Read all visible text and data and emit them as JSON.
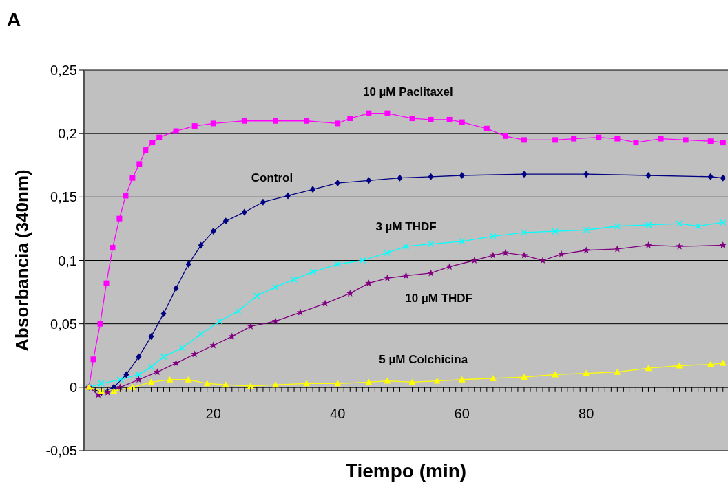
{
  "chart_data": {
    "type": "line",
    "xlabel": "Tiempo (min)",
    "ylabel": "Absorbancia (340nm)",
    "xlim": [
      -0.8,
      102.8
    ],
    "ylim": [
      -0.05,
      0.25
    ],
    "yticks": [
      {
        "value": -0.05,
        "label": "-0,05"
      },
      0,
      {
        "value": 0.05,
        "label": "0,05"
      },
      {
        "value": 0.1,
        "label": "0,1"
      },
      {
        "value": 0.15,
        "label": "0,15"
      },
      {
        "value": 0.2,
        "label": "0,2"
      },
      {
        "value": 0.25,
        "label": "0,25"
      }
    ],
    "xticks": [
      {
        "value": 1,
        "label": null
      },
      {
        "value": 2,
        "label": null
      },
      {
        "value": 3,
        "label": null
      },
      {
        "value": 4,
        "label": null
      },
      {
        "value": 5,
        "label": null
      },
      {
        "value": 6,
        "label": null
      },
      {
        "value": 7,
        "label": null
      },
      {
        "value": 8,
        "label": null
      },
      {
        "value": 9,
        "label": null
      },
      {
        "value": 10,
        "label": null
      },
      {
        "value": 11,
        "label": null
      },
      {
        "value": 12,
        "label": null
      },
      {
        "value": 13,
        "label": null
      },
      {
        "value": 14,
        "label": null
      },
      {
        "value": 15,
        "label": null
      },
      {
        "value": 16,
        "label": null
      },
      {
        "value": 17,
        "label": null
      },
      {
        "value": 18,
        "label": null
      },
      {
        "value": 19,
        "label": null
      },
      20,
      {
        "value": 21,
        "label": null
      },
      {
        "value": 22,
        "label": null
      },
      {
        "value": 23,
        "label": null
      },
      {
        "value": 24,
        "label": null
      },
      {
        "value": 25,
        "label": null
      },
      {
        "value": 26,
        "label": null
      },
      {
        "value": 27,
        "label": null
      },
      {
        "value": 28,
        "label": null
      },
      {
        "value": 29,
        "label": null
      },
      {
        "value": 30,
        "label": null
      },
      {
        "value": 31,
        "label": null
      },
      {
        "value": 32,
        "label": null
      },
      {
        "value": 33,
        "label": null
      },
      {
        "value": 34,
        "label": null
      },
      {
        "value": 35,
        "label": null
      },
      {
        "value": 36,
        "label": null
      },
      {
        "value": 37,
        "label": null
      },
      {
        "value": 38,
        "label": null
      },
      {
        "value": 39,
        "label": null
      },
      40,
      {
        "value": 41,
        "label": null
      },
      {
        "value": 42,
        "label": null
      },
      {
        "value": 43,
        "label": null
      },
      {
        "value": 44,
        "label": null
      },
      {
        "value": 45,
        "label": null
      },
      {
        "value": 46,
        "label": null
      },
      {
        "value": 47,
        "label": null
      },
      {
        "value": 48,
        "label": null
      },
      {
        "value": 49,
        "label": null
      },
      {
        "value": 50,
        "label": null
      },
      {
        "value": 51,
        "label": null
      },
      {
        "value": 52,
        "label": null
      },
      {
        "value": 53,
        "label": null
      },
      {
        "value": 54,
        "label": null
      },
      {
        "value": 55,
        "label": null
      },
      {
        "value": 56,
        "label": null
      },
      {
        "value": 57,
        "label": null
      },
      {
        "value": 58,
        "label": null
      },
      {
        "value": 59,
        "label": null
      },
      60,
      {
        "value": 61,
        "label": null
      },
      {
        "value": 62,
        "label": null
      },
      {
        "value": 63,
        "label": null
      },
      {
        "value": 64,
        "label": null
      },
      {
        "value": 65,
        "label": null
      },
      {
        "value": 66,
        "label": null
      },
      {
        "value": 67,
        "label": null
      },
      {
        "value": 68,
        "label": null
      },
      {
        "value": 69,
        "label": null
      },
      {
        "value": 70,
        "label": null
      },
      {
        "value": 71,
        "label": null
      },
      {
        "value": 72,
        "label": null
      },
      {
        "value": 73,
        "label": null
      },
      {
        "value": 74,
        "label": null
      },
      {
        "value": 75,
        "label": null
      },
      {
        "value": 76,
        "label": null
      },
      {
        "value": 77,
        "label": null
      },
      {
        "value": 78,
        "label": null
      },
      {
        "value": 79,
        "label": null
      },
      80,
      {
        "value": 81,
        "label": null
      },
      {
        "value": 82,
        "label": null
      },
      {
        "value": 83,
        "label": null
      },
      {
        "value": 84,
        "label": null
      },
      {
        "value": 85,
        "label": null
      },
      {
        "value": 86,
        "label": null
      },
      {
        "value": 87,
        "label": null
      },
      {
        "value": 88,
        "label": null
      },
      {
        "value": 89,
        "label": null
      },
      {
        "value": 90,
        "label": null
      },
      {
        "value": 91,
        "label": null
      },
      {
        "value": 92,
        "label": null
      },
      {
        "value": 93,
        "label": null
      },
      {
        "value": 94,
        "label": null
      },
      {
        "value": 95,
        "label": null
      },
      {
        "value": 96,
        "label": null
      },
      {
        "value": 97,
        "label": null
      },
      {
        "value": 98,
        "label": null
      },
      {
        "value": 99,
        "label": null
      },
      {
        "value": 100,
        "label": null
      },
      {
        "value": 101,
        "label": null
      },
      {
        "value": 102,
        "label": null
      }
    ],
    "grid": "y",
    "legend": false,
    "line_style": "solid",
    "series": [
      {
        "name": "10 µM Paclitaxel",
        "color": "#ff00ff",
        "marker": "square",
        "x": [
          0,
          0.7,
          1.8,
          2.8,
          3.8,
          4.9,
          5.9,
          7,
          8.1,
          9.1,
          10.2,
          11.3,
          14,
          17,
          20,
          25,
          30,
          35,
          40,
          42,
          45,
          48,
          52,
          55,
          58,
          60,
          64,
          67,
          70,
          75,
          78,
          82,
          85,
          88,
          92,
          96,
          100,
          102
        ],
        "values": [
          0,
          0.022,
          0.05,
          0.082,
          0.11,
          0.133,
          0.151,
          0.165,
          0.176,
          0.187,
          0.193,
          0.197,
          0.202,
          0.206,
          0.208,
          0.21,
          0.21,
          0.21,
          0.208,
          0.212,
          0.216,
          0.216,
          0.212,
          0.211,
          0.211,
          0.209,
          0.204,
          0.198,
          0.195,
          0.195,
          0.196,
          0.197,
          0.196,
          0.193,
          0.196,
          0.195,
          0.194,
          0.193
        ]
      },
      {
        "name": "Control",
        "color": "#000080",
        "marker": "diamond",
        "x": [
          0,
          2,
          4,
          6,
          8,
          10,
          12,
          14,
          16,
          18,
          20,
          22,
          25,
          28,
          32,
          36,
          40,
          45,
          50,
          55,
          60,
          70,
          80,
          90,
          100,
          102
        ],
        "values": [
          0,
          -0.004,
          0,
          0.01,
          0.024,
          0.04,
          0.058,
          0.078,
          0.097,
          0.112,
          0.123,
          0.131,
          0.138,
          0.146,
          0.151,
          0.156,
          0.161,
          0.163,
          0.165,
          0.166,
          0.167,
          0.168,
          0.168,
          0.167,
          0.166,
          0.165
        ]
      },
      {
        "name": "3 µM THDF",
        "color": "#00ffff",
        "marker": "cross",
        "x": [
          0,
          2,
          5,
          8,
          10,
          12,
          15,
          18,
          21,
          24,
          27,
          30,
          33,
          36,
          40,
          44,
          48,
          51,
          55,
          60,
          65,
          70,
          75,
          80,
          85,
          90,
          95,
          98,
          102
        ],
        "values": [
          0,
          0.003,
          0.006,
          0.01,
          0.016,
          0.024,
          0.031,
          0.042,
          0.052,
          0.06,
          0.072,
          0.079,
          0.085,
          0.091,
          0.097,
          0.1,
          0.106,
          0.111,
          0.113,
          0.115,
          0.119,
          0.122,
          0.123,
          0.124,
          0.127,
          0.128,
          0.129,
          0.127,
          0.13
        ]
      },
      {
        "name": "10 µM THDF",
        "color": "#800080",
        "marker": "star",
        "x": [
          0,
          1.5,
          3,
          5,
          8,
          11,
          14,
          17,
          20,
          23,
          26,
          30,
          34,
          38,
          42,
          45,
          48,
          51,
          55,
          58,
          62,
          65,
          67,
          70,
          73,
          76,
          80,
          85,
          90,
          95,
          102
        ],
        "values": [
          0,
          -0.006,
          -0.004,
          0,
          0.006,
          0.012,
          0.019,
          0.026,
          0.033,
          0.04,
          0.048,
          0.052,
          0.059,
          0.066,
          0.074,
          0.082,
          0.086,
          0.088,
          0.09,
          0.095,
          0.1,
          0.104,
          0.106,
          0.104,
          0.1,
          0.105,
          0.108,
          0.109,
          0.112,
          0.111,
          0.112
        ]
      },
      {
        "name": "5 µM Colchicina",
        "color": "#ffff00",
        "marker": "triangle",
        "x": [
          0,
          2,
          4,
          7,
          10,
          13,
          16,
          19,
          22,
          26,
          30,
          35,
          40,
          45,
          48,
          52,
          56,
          60,
          65,
          70,
          75,
          80,
          85,
          90,
          95,
          100,
          102
        ],
        "values": [
          0,
          -0.003,
          -0.003,
          0,
          0.004,
          0.006,
          0.006,
          0.003,
          0.002,
          0.001,
          0.002,
          0.003,
          0.003,
          0.004,
          0.005,
          0.004,
          0.005,
          0.006,
          0.007,
          0.008,
          0.01,
          0.011,
          0.012,
          0.015,
          0.017,
          0.018,
          0.019
        ]
      }
    ],
    "annotations": [
      "A"
    ]
  }
}
